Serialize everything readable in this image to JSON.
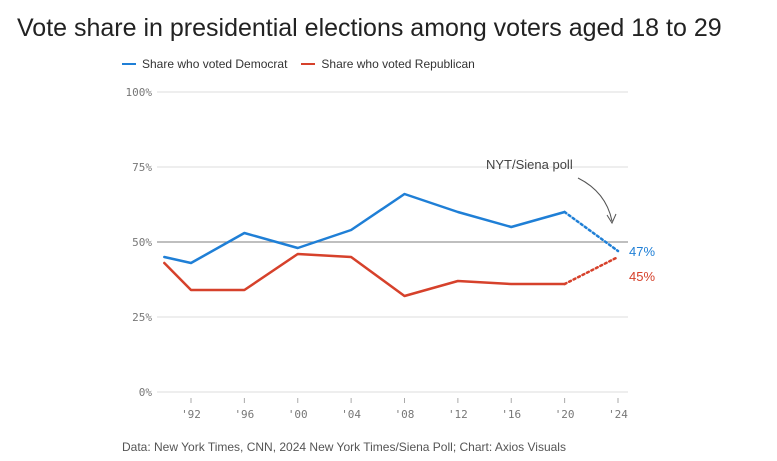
{
  "title": "Vote share in presidential elections among voters aged 18 to 29",
  "source": "Data: New York Times, CNN, 2024 New York Times/Siena Poll; Chart: Axios Visuals",
  "annotation": "NYT/Siena poll",
  "colors": {
    "democrat": "#1f7fd6",
    "republican": "#d6412b",
    "grid": "#dddddd",
    "baseline": "#999999"
  },
  "chart_data": {
    "type": "line",
    "x": [
      1990,
      1992,
      1996,
      2000,
      2004,
      2008,
      2012,
      2016,
      2020,
      2024
    ],
    "x_tick_labels": [
      "'92",
      "'96",
      "'00",
      "'04",
      "'08",
      "'12",
      "'16",
      "'20",
      "'24"
    ],
    "x_tick_values": [
      1992,
      1996,
      2000,
      2004,
      2008,
      2012,
      2016,
      2020,
      2024
    ],
    "y_tick_labels": [
      "0%",
      "25%",
      "50%",
      "75%",
      "100%"
    ],
    "y_tick_values": [
      0,
      25,
      50,
      75,
      100
    ],
    "ylim": [
      0,
      100
    ],
    "reference_line": 50,
    "projected_from_index": 8,
    "series": [
      {
        "name": "Share who voted Democrat",
        "values": [
          45,
          43,
          53,
          48,
          54,
          66,
          60,
          55,
          60,
          47
        ],
        "end_label": "47%"
      },
      {
        "name": "Share who voted Republican",
        "values": [
          43,
          34,
          34,
          46,
          45,
          32,
          37,
          36,
          36,
          45
        ],
        "end_label": "45%"
      }
    ],
    "legend_position": "top-left"
  }
}
